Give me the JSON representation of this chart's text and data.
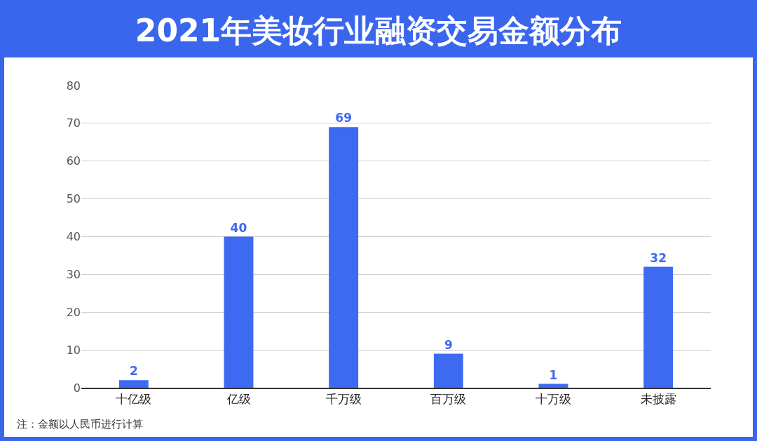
{
  "chart_data": {
    "type": "bar",
    "title": "2021年美妆行业融资交易金额分布",
    "categories": [
      "十亿级",
      "亿级",
      "千万级",
      "百万级",
      "十万级",
      "未披露"
    ],
    "values": [
      2,
      40,
      69,
      9,
      1,
      32
    ],
    "color": "#3d6af0",
    "ylim": [
      0,
      80
    ],
    "yticks": [
      0,
      10,
      20,
      30,
      40,
      50,
      60,
      70,
      80
    ],
    "grid": "y",
    "data_labels": true,
    "legend": false,
    "annotations": [
      "注：金额以人民币进行计算"
    ]
  }
}
